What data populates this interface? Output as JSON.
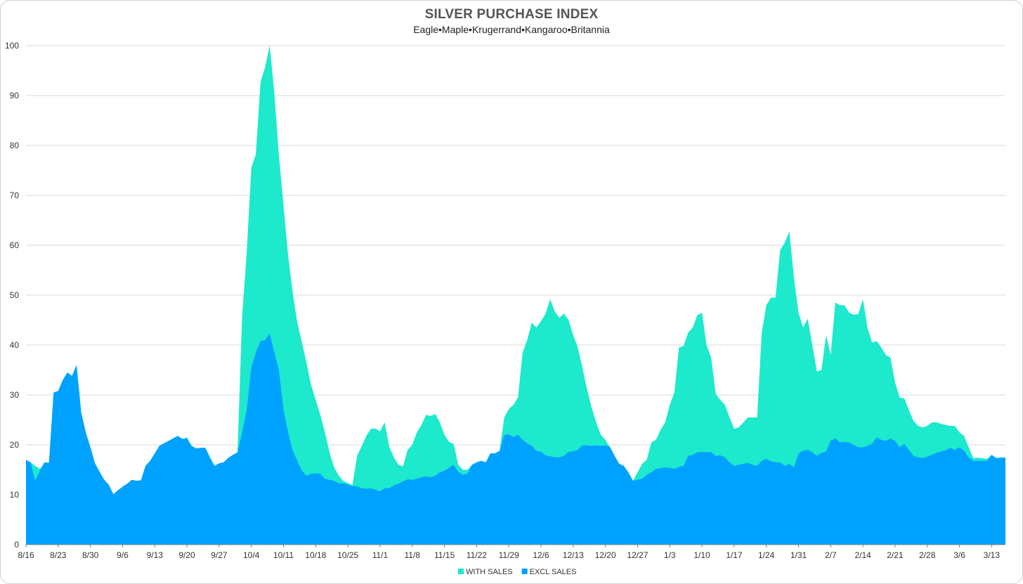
{
  "chart_data": {
    "type": "area",
    "title": "SILVER PURCHASE INDEX",
    "subtitle": "Eagle•Maple•Krugerrand•Kangaroo•Britannia",
    "xlabel": "",
    "ylabel": "",
    "ylim": [
      0,
      100
    ],
    "yticks": [
      0,
      10,
      20,
      30,
      40,
      50,
      60,
      70,
      80,
      90,
      100
    ],
    "grid": true,
    "legend_position": "bottom-center",
    "x_tick_labels": [
      "8/16",
      "8/23",
      "8/30",
      "9/6",
      "9/13",
      "9/20",
      "9/27",
      "10/4",
      "10/11",
      "10/18",
      "10/25",
      "11/1",
      "11/8",
      "11/15",
      "11/22",
      "11/29",
      "12/6",
      "12/13",
      "12/20",
      "12/27",
      "1/3",
      "1/10",
      "1/17",
      "1/24",
      "1/31",
      "2/7",
      "2/14",
      "2/21",
      "2/28",
      "3/6",
      "3/13"
    ],
    "series": [
      {
        "name": "WITH SALES",
        "color": "#1de9cc",
        "values": [
          17,
          16.5,
          15.8,
          15.2,
          16,
          16.4,
          30.5,
          30.8,
          33,
          34.5,
          33.8,
          36,
          26.5,
          22.5,
          19.5,
          16.3,
          14.6,
          13,
          12,
          10.1,
          10.9,
          11.6,
          12.2,
          13,
          12.8,
          12.9,
          15.8,
          16.8,
          18.3,
          19.8,
          20.3,
          20.8,
          21.3,
          21.8,
          21.2,
          21.4,
          19.8,
          19.3,
          19.4,
          19.4,
          17.5,
          15.8,
          16.3,
          16.5,
          17.4,
          18,
          18.5,
          45.8,
          58.5,
          75.5,
          78.3,
          92.7,
          95.7,
          100,
          90.5,
          78,
          68,
          58,
          50.5,
          44.5,
          40.5,
          36.5,
          32,
          29,
          26,
          22.5,
          18.5,
          15.5,
          13.8,
          12.8,
          12.3,
          12,
          17.8,
          19.7,
          21.8,
          23.2,
          23.3,
          22.7,
          24.5,
          19.6,
          17.5,
          16,
          15.7,
          19,
          20,
          22.5,
          24,
          26,
          25.8,
          26.2,
          24.5,
          22,
          20.6,
          20.2,
          16,
          15,
          15,
          16,
          16.5,
          16.8,
          16.5,
          18.3,
          18.3,
          18.8,
          25.5,
          27.2,
          28,
          29.5,
          38.5,
          41,
          44.5,
          43.5,
          44.8,
          46.3,
          49.2,
          46.7,
          45.5,
          46.3,
          45,
          42,
          39.5,
          35.5,
          31.2,
          27.5,
          24.5,
          22,
          21,
          19.5,
          17.8,
          16.2,
          15.8,
          14.5,
          12.8,
          14.5,
          16.2,
          17,
          20.5,
          21,
          23,
          24.5,
          28,
          30.5,
          39.5,
          39.8,
          42.5,
          43.5,
          46,
          46.5,
          40,
          37.5,
          30.2,
          29,
          28,
          25.5,
          23.2,
          23.5,
          24.5,
          25.5,
          25.5,
          25.5,
          42.5,
          48,
          49.5,
          49.5,
          59,
          60.5,
          62.8,
          53.5,
          46.5,
          43.5,
          45.3,
          40,
          34.7,
          35,
          42,
          38,
          48.5,
          48,
          48,
          46.5,
          46.1,
          46.2,
          49.2,
          43.5,
          40.5,
          40.8,
          39.5,
          38,
          37.5,
          32.5,
          29.5,
          29.3,
          27,
          24.8,
          23.8,
          23.5,
          23.8,
          24.5,
          24.5,
          24.2,
          24,
          23.8,
          23.8,
          22.5,
          21.8,
          19.5,
          17.4,
          17.4,
          17.3,
          17.2,
          18,
          17.4,
          17.5,
          17.5
        ]
      },
      {
        "name": "EXCL SALES",
        "color": "#00a2ff",
        "values": [
          17,
          16.5,
          12.8,
          14.8,
          16.5,
          16.4,
          30.5,
          30.8,
          33,
          34.5,
          33.8,
          36,
          26.5,
          22.5,
          19.5,
          16.3,
          14.6,
          13,
          12,
          10.1,
          10.9,
          11.6,
          12.2,
          13,
          12.8,
          12.9,
          15.8,
          16.8,
          18.3,
          19.8,
          20.3,
          20.8,
          21.3,
          21.8,
          21.2,
          21.4,
          19.8,
          19.3,
          19.4,
          19.4,
          17.5,
          15.8,
          16.3,
          16.5,
          17.4,
          18,
          18.5,
          22.5,
          27,
          35.5,
          38.5,
          40.8,
          41,
          42.3,
          38.5,
          35,
          27,
          22.5,
          18.8,
          16.8,
          14.8,
          13.8,
          14.2,
          14.3,
          14.2,
          13.2,
          13,
          12.8,
          12.3,
          12.3,
          12,
          11.7,
          11.7,
          11.3,
          11.2,
          11.3,
          11,
          10.7,
          11.3,
          11.3,
          11.9,
          12.2,
          12.7,
          13.1,
          13,
          13.2,
          13.5,
          13.7,
          13.5,
          13.8,
          14.5,
          14.8,
          15.4,
          16,
          14.6,
          14,
          14.2,
          16,
          16.5,
          16.8,
          16.5,
          18.3,
          18.3,
          18.8,
          22,
          22.1,
          21.6,
          22,
          21,
          20.3,
          19.8,
          18.8,
          18.6,
          17.9,
          17.7,
          17.5,
          17.5,
          17.8,
          18.6,
          18.7,
          19,
          19.9,
          19.9,
          19.8,
          19.9,
          19.8,
          19.9,
          19.6,
          17.8,
          16.2,
          15.8,
          14.5,
          12.8,
          13,
          13.2,
          14,
          14.5,
          15.2,
          15.3,
          15.5,
          15.4,
          15.2,
          15.6,
          15.8,
          17.8,
          18,
          18.5,
          18.6,
          18.5,
          18.6,
          17.8,
          17.9,
          17.5,
          16.5,
          15.8,
          16,
          16.2,
          16.4,
          16,
          15.8,
          16.8,
          17.2,
          16.7,
          16.5,
          16.5,
          15.8,
          16.2,
          15.5,
          18.3,
          18.8,
          19,
          18.5,
          17.8,
          18.4,
          18.7,
          20.8,
          21.3,
          20.5,
          20.6,
          20.5,
          20,
          19.5,
          19.5,
          19.8,
          20.2,
          21.5,
          21,
          20.8,
          21.3,
          20.8,
          19.5,
          20.2,
          19,
          17.8,
          17.5,
          17.4,
          17.6,
          18,
          18.4,
          18.7,
          18.9,
          19.4,
          19,
          19.5,
          18.8,
          17.5,
          16.8,
          16.8,
          16.8,
          16.8,
          18,
          17.3,
          17.4,
          17.4
        ]
      }
    ]
  }
}
